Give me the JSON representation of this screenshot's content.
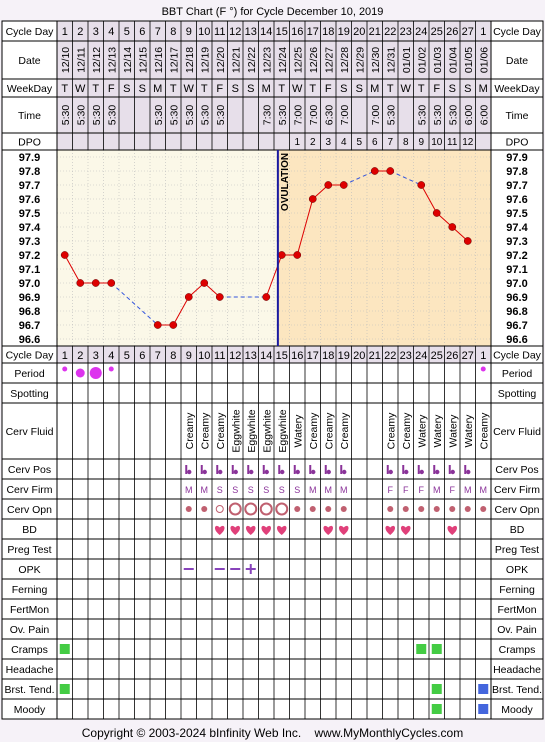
{
  "title": "BBT Chart (F °) for Cycle December 10, 2019",
  "footer": "Copyright © 2003-2024 bInfinity Web Inc.    www.MyMonthlyCycles.com",
  "ovulation_label": "OVULATION",
  "colors": {
    "line": "#dd0000",
    "dashed": "#3355dd",
    "ovulation": "#1a1aa0",
    "pre_bg": "#fbf8e8",
    "post_bg": "#fce6c0",
    "header_bg": "#e7dfea",
    "period": "#dd33ee",
    "heart": "#e0407a",
    "green": "#44cc44",
    "blue": "#4466dd",
    "opk": "#8844bb",
    "small_text": "#8a3399"
  },
  "labels": {
    "cycle_day": "Cycle Day",
    "date": "Date",
    "weekday": "WeekDay",
    "time": "Time",
    "dpo": "DPO",
    "rows": [
      "Period",
      "Spotting",
      "Cerv Fluid",
      "Cerv Pos",
      "Cerv Firm",
      "Cerv Opn",
      "BD",
      "Preg Test",
      "OPK",
      "Ferning",
      "FertMon",
      "Ov. Pain",
      "Cramps",
      "Headache",
      "Brst. Tend.",
      "Moody"
    ]
  },
  "days": [
    "1",
    "2",
    "3",
    "4",
    "5",
    "6",
    "7",
    "8",
    "9",
    "10",
    "11",
    "12",
    "13",
    "14",
    "15",
    "16",
    "17",
    "18",
    "19",
    "20",
    "21",
    "22",
    "23",
    "24",
    "25",
    "26",
    "27",
    "1"
  ],
  "dates": [
    "12/10",
    "12/11",
    "12/12",
    "12/13",
    "12/14",
    "12/15",
    "12/16",
    "12/17",
    "12/18",
    "12/19",
    "12/20",
    "12/21",
    "12/22",
    "12/23",
    "12/24",
    "12/25",
    "12/26",
    "12/27",
    "12/28",
    "12/29",
    "12/30",
    "12/31",
    "01/01",
    "01/02",
    "01/03",
    "01/04",
    "01/05",
    "01/06"
  ],
  "weekdays": [
    "T",
    "W",
    "T",
    "F",
    "S",
    "S",
    "M",
    "T",
    "W",
    "T",
    "F",
    "S",
    "S",
    "M",
    "T",
    "W",
    "T",
    "F",
    "S",
    "S",
    "M",
    "T",
    "W",
    "T",
    "F",
    "S",
    "S",
    "M"
  ],
  "times": [
    "5:30",
    "5:30",
    "5:30",
    "5:30",
    "",
    "",
    "5:30",
    "5:30",
    "5:30",
    "5:30",
    "5:30",
    "",
    "",
    "7:30",
    "5:30",
    "7:00",
    "7:00",
    "6:30",
    "7:00",
    "",
    "7:00",
    "5:30",
    "",
    "5:30",
    "5:30",
    "5:30",
    "6:00",
    "6:00"
  ],
  "dpo": [
    "",
    "",
    "",
    "",
    "",
    "",
    "",
    "",
    "",
    "",
    "",
    "",
    "",
    "",
    "",
    "1",
    "2",
    "3",
    "4",
    "5",
    "6",
    "7",
    "8",
    "9",
    "10",
    "11",
    "12",
    ""
  ],
  "cerv_fluid": [
    "",
    "",
    "",
    "",
    "",
    "",
    "",
    "",
    "Creamy",
    "Creamy",
    "Creamy",
    "Eggwhite",
    "Eggwhite",
    "Eggwhite",
    "Eggwhite",
    "Watery",
    "Creamy",
    "Creamy",
    "Creamy",
    "",
    "",
    "Creamy",
    "Creamy",
    "Watery",
    "Watery",
    "Watery",
    "Watery",
    "Creamy"
  ],
  "cerv_pos_marks": [
    9,
    10,
    11,
    12,
    13,
    14,
    15,
    16,
    17,
    18,
    19,
    22,
    23,
    24,
    25,
    26,
    27
  ],
  "cerv_firm": [
    "",
    "",
    "",
    "",
    "",
    "",
    "",
    "",
    "M",
    "M",
    "S",
    "S",
    "S",
    "S",
    "S",
    "S",
    "M",
    "M",
    "M",
    "",
    "",
    "F",
    "F",
    "F",
    "M",
    "F",
    "M",
    "M"
  ],
  "cerv_opn": [
    "",
    "",
    "",
    "",
    "",
    "",
    "",
    "",
    "dot",
    "dot",
    "o",
    "O",
    "O",
    "O",
    "O",
    "dot",
    "dot",
    "dot",
    "dot",
    "",
    "",
    "dot",
    "dot",
    "dot",
    "dot",
    "dot",
    "dot",
    "dot"
  ],
  "period": [
    2,
    3,
    4,
    2,
    0,
    0,
    0,
    0,
    0,
    0,
    0,
    0,
    0,
    0,
    0,
    0,
    0,
    0,
    0,
    0,
    0,
    0,
    0,
    0,
    0,
    0,
    0,
    2
  ],
  "bd_days": [
    11,
    12,
    13,
    14,
    15,
    18,
    19,
    22,
    23,
    26
  ],
  "opk": [
    "",
    "",
    "",
    "",
    "",
    "",
    "",
    "",
    "neg",
    "",
    "neg",
    "neg",
    "pos",
    "",
    "",
    "",
    "",
    "",
    "",
    "",
    "",
    "",
    "",
    "",
    "",
    "",
    "",
    ""
  ],
  "cramps_days": [
    1,
    24,
    25
  ],
  "brst_tend": [
    {
      "day": 1,
      "color": "green"
    },
    {
      "day": 25,
      "color": "green"
    },
    {
      "day": 28,
      "color": "blue"
    }
  ],
  "moody": [
    {
      "day": 25,
      "color": "green"
    },
    {
      "day": 28,
      "color": "blue"
    }
  ],
  "chart_data": {
    "type": "line",
    "title": "BBT Chart (F °) for Cycle December 10, 2019",
    "xlabel": "Cycle Day",
    "ylabel": "",
    "ylim": [
      96.6,
      97.9
    ],
    "y_ticks": [
      "97.9",
      "97.8",
      "97.7",
      "97.6",
      "97.5",
      "97.4",
      "97.3",
      "97.2",
      "97.1",
      "97.0",
      "96.9",
      "96.8",
      "96.7",
      "96.6"
    ],
    "x": [
      1,
      2,
      3,
      4,
      5,
      6,
      7,
      8,
      9,
      10,
      11,
      12,
      13,
      14,
      15,
      16,
      17,
      18,
      19,
      20,
      21,
      22,
      23,
      24,
      25,
      26,
      27,
      28
    ],
    "temps": [
      97.2,
      97.0,
      97.0,
      97.0,
      null,
      null,
      96.7,
      96.7,
      96.9,
      97.0,
      96.9,
      null,
      null,
      96.9,
      97.2,
      97.2,
      97.6,
      97.7,
      97.7,
      null,
      97.8,
      97.8,
      null,
      97.7,
      97.5,
      97.4,
      97.3,
      null
    ],
    "ovulation_day": 15,
    "grid": true
  }
}
